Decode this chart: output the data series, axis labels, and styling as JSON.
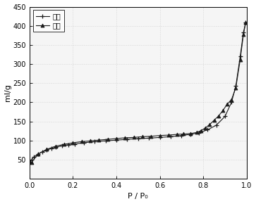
{
  "title": "",
  "xlabel": "P / P₀",
  "ylabel": "ml/g",
  "xlim": [
    0.0,
    1.0
  ],
  "ylim": [
    0,
    450
  ],
  "yticks": [
    50,
    100,
    150,
    200,
    250,
    300,
    350,
    400,
    450
  ],
  "xticks": [
    0.0,
    0.2,
    0.4,
    0.6,
    0.8,
    1.0
  ],
  "legend1": "脱附",
  "legend2": "吸附",
  "adsorption_x": [
    0.005,
    0.01,
    0.02,
    0.04,
    0.06,
    0.08,
    0.1,
    0.12,
    0.15,
    0.18,
    0.21,
    0.25,
    0.3,
    0.35,
    0.4,
    0.45,
    0.5,
    0.55,
    0.6,
    0.65,
    0.7,
    0.74,
    0.78,
    0.82,
    0.86,
    0.9,
    0.93,
    0.95,
    0.97,
    0.985,
    0.995
  ],
  "adsorption_y": [
    45,
    50,
    57,
    65,
    70,
    75,
    79,
    82,
    86,
    89,
    91,
    94,
    97,
    99,
    101,
    103,
    105,
    106,
    108,
    110,
    113,
    116,
    120,
    128,
    140,
    163,
    200,
    243,
    320,
    383,
    408
  ],
  "desorption_x": [
    0.995,
    0.985,
    0.97,
    0.95,
    0.93,
    0.91,
    0.89,
    0.87,
    0.85,
    0.83,
    0.81,
    0.79,
    0.77,
    0.74,
    0.71,
    0.68,
    0.64,
    0.6,
    0.56,
    0.52,
    0.48,
    0.44,
    0.4,
    0.36,
    0.32,
    0.28,
    0.24,
    0.2,
    0.16,
    0.12,
    0.08,
    0.04,
    0.01
  ],
  "desorption_y": [
    408,
    378,
    312,
    238,
    207,
    195,
    178,
    164,
    153,
    142,
    133,
    126,
    121,
    118,
    117,
    116,
    114,
    113,
    111,
    110,
    108,
    107,
    105,
    103,
    101,
    99,
    97,
    94,
    90,
    85,
    77,
    65,
    43
  ],
  "line_color": "#1a1a1a",
  "background_color": "#ffffff",
  "plot_bg_color": "#f5f5f5",
  "figsize": [
    3.63,
    2.9
  ],
  "dpi": 100
}
